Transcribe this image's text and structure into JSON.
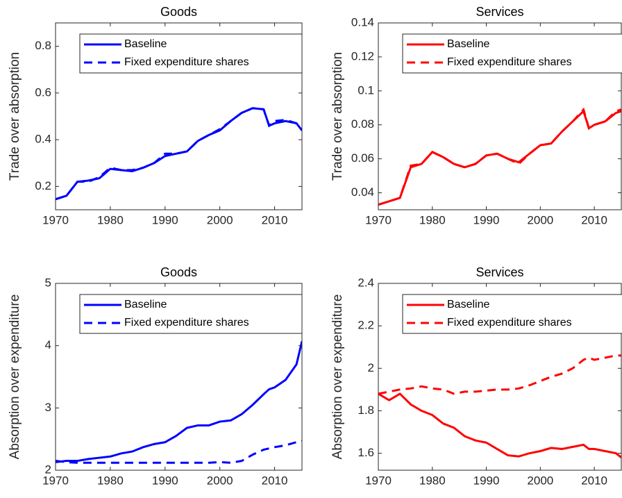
{
  "chart_data": [
    {
      "type": "line",
      "title": "Goods",
      "ylabel": "Trade over absorption",
      "x": [
        1970,
        1972,
        1974,
        1976,
        1978,
        1980,
        1982,
        1984,
        1986,
        1988,
        1990,
        1992,
        1994,
        1996,
        1998,
        2000,
        2002,
        2004,
        2006,
        2008,
        2009,
        2010,
        2012,
        2014,
        2015
      ],
      "series": [
        {
          "name": "Baseline",
          "color": "#0000ff",
          "linestyle": "solid",
          "values": [
            0.145,
            0.16,
            0.22,
            0.225,
            0.235,
            0.275,
            0.27,
            0.265,
            0.28,
            0.3,
            0.33,
            0.34,
            0.35,
            0.395,
            0.42,
            0.44,
            0.48,
            0.515,
            0.535,
            0.53,
            0.46,
            0.47,
            0.48,
            0.47,
            0.44
          ]
        },
        {
          "name": "Fixed expenditure shares",
          "color": "#0000ff",
          "linestyle": "dashed",
          "values": [
            0.145,
            0.16,
            0.22,
            0.22,
            0.24,
            0.28,
            0.27,
            0.27,
            0.28,
            0.3,
            0.34,
            0.34,
            0.35,
            0.395,
            0.42,
            0.445,
            0.48,
            0.515,
            0.535,
            0.53,
            0.46,
            0.48,
            0.485,
            0.47,
            0.44
          ]
        }
      ],
      "xlim": [
        1970,
        2015
      ],
      "xticks": [
        1970,
        1980,
        1990,
        2000,
        2010
      ],
      "ylim": [
        0.1,
        0.9
      ],
      "yticks": [
        0.2,
        0.4,
        0.6,
        0.8
      ],
      "grid": false,
      "legend": "upper left"
    },
    {
      "type": "line",
      "title": "Services",
      "ylabel": "Trade over absorption",
      "x": [
        1970,
        1972,
        1974,
        1976,
        1978,
        1980,
        1982,
        1984,
        1986,
        1988,
        1990,
        1992,
        1994,
        1996,
        1998,
        2000,
        2002,
        2004,
        2006,
        2008,
        2009,
        2010,
        2012,
        2014,
        2015
      ],
      "series": [
        {
          "name": "Baseline",
          "color": "#ff0000",
          "linestyle": "solid",
          "values": [
            0.033,
            0.035,
            0.037,
            0.055,
            0.057,
            0.064,
            0.061,
            0.057,
            0.055,
            0.057,
            0.062,
            0.063,
            0.06,
            0.058,
            0.063,
            0.068,
            0.069,
            0.076,
            0.082,
            0.088,
            0.078,
            0.08,
            0.082,
            0.087,
            0.088
          ]
        },
        {
          "name": "Fixed expenditure shares",
          "color": "#ff0000",
          "linestyle": "dashed",
          "values": [
            0.033,
            0.035,
            0.037,
            0.056,
            0.057,
            0.064,
            0.061,
            0.057,
            0.055,
            0.057,
            0.062,
            0.063,
            0.06,
            0.057,
            0.063,
            0.068,
            0.069,
            0.076,
            0.082,
            0.089,
            0.078,
            0.08,
            0.082,
            0.088,
            0.089
          ]
        }
      ],
      "xlim": [
        1970,
        2015
      ],
      "xticks": [
        1970,
        1980,
        1990,
        2000,
        2010
      ],
      "ylim": [
        0.03,
        0.14
      ],
      "yticks": [
        0.04,
        0.06,
        0.08,
        0.1,
        0.12,
        0.14
      ],
      "grid": false,
      "legend": "upper left"
    },
    {
      "type": "line",
      "title": "Goods",
      "ylabel": "Absorption over expenditure",
      "x": [
        1970,
        1972,
        1974,
        1976,
        1978,
        1980,
        1982,
        1984,
        1986,
        1988,
        1990,
        1992,
        1994,
        1996,
        1998,
        2000,
        2002,
        2004,
        2006,
        2008,
        2009,
        2010,
        2012,
        2014,
        2015
      ],
      "series": [
        {
          "name": "Baseline",
          "color": "#0000ff",
          "linestyle": "solid",
          "values": [
            2.13,
            2.15,
            2.15,
            2.18,
            2.2,
            2.22,
            2.27,
            2.3,
            2.37,
            2.42,
            2.45,
            2.55,
            2.68,
            2.72,
            2.72,
            2.78,
            2.8,
            2.9,
            3.05,
            3.22,
            3.3,
            3.33,
            3.45,
            3.7,
            4.07
          ]
        },
        {
          "name": "Fixed expenditure shares",
          "color": "#0000ff",
          "linestyle": "dashed",
          "values": [
            2.15,
            2.13,
            2.12,
            2.12,
            2.12,
            2.12,
            2.12,
            2.12,
            2.12,
            2.12,
            2.12,
            2.12,
            2.12,
            2.12,
            2.12,
            2.13,
            2.12,
            2.15,
            2.25,
            2.33,
            2.35,
            2.37,
            2.4,
            2.45,
            2.47
          ]
        }
      ],
      "xlim": [
        1970,
        2015
      ],
      "xticks": [
        1970,
        1980,
        1990,
        2000,
        2010
      ],
      "ylim": [
        2,
        5
      ],
      "yticks": [
        2,
        3,
        4,
        5
      ],
      "grid": false,
      "legend": "upper left"
    },
    {
      "type": "line",
      "title": "Services",
      "ylabel": "Absorption over expenditure",
      "x": [
        1970,
        1972,
        1974,
        1976,
        1978,
        1980,
        1982,
        1984,
        1986,
        1988,
        1990,
        1992,
        1994,
        1996,
        1998,
        2000,
        2002,
        2004,
        2006,
        2008,
        2009,
        2010,
        2012,
        2014,
        2015
      ],
      "series": [
        {
          "name": "Baseline",
          "color": "#ff0000",
          "linestyle": "solid",
          "values": [
            1.88,
            1.85,
            1.88,
            1.83,
            1.8,
            1.78,
            1.74,
            1.72,
            1.68,
            1.66,
            1.65,
            1.62,
            1.59,
            1.585,
            1.6,
            1.61,
            1.625,
            1.62,
            1.63,
            1.64,
            1.62,
            1.62,
            1.61,
            1.6,
            1.58
          ]
        },
        {
          "name": "Fixed expenditure shares",
          "color": "#ff0000",
          "linestyle": "dashed",
          "values": [
            1.88,
            1.89,
            1.9,
            1.905,
            1.915,
            1.905,
            1.9,
            1.88,
            1.89,
            1.89,
            1.895,
            1.9,
            1.9,
            1.905,
            1.92,
            1.94,
            1.96,
            1.975,
            2,
            2.04,
            2.05,
            2.04,
            2.05,
            2.06,
            2.06
          ]
        }
      ],
      "xlim": [
        1970,
        2015
      ],
      "xticks": [
        1970,
        1980,
        1990,
        2000,
        2010
      ],
      "ylim": [
        1.52,
        2.4
      ],
      "yticks": [
        1.6,
        1.8,
        2,
        2.2,
        2.4
      ],
      "grid": false,
      "legend": "upper left"
    }
  ]
}
